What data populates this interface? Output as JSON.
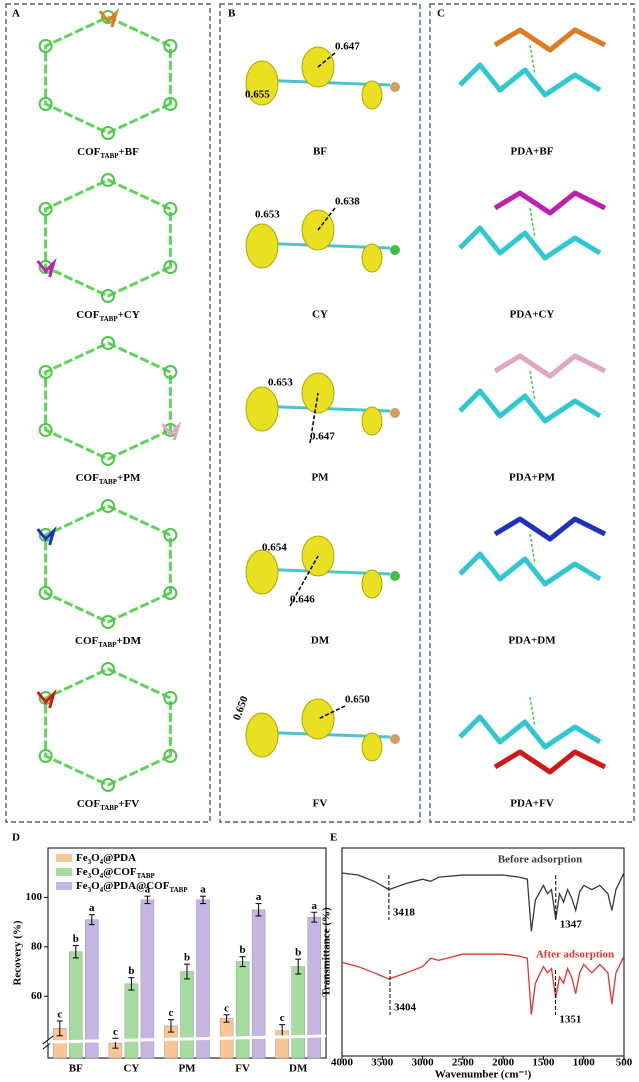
{
  "panels": {
    "A": {
      "label": "A",
      "items": [
        "COFTABP+BF",
        "COFTABP+CY",
        "COFTABP+PM",
        "COFTABP+DM",
        "COFTABP+FV"
      ]
    },
    "B": {
      "label": "B",
      "items": [
        {
          "name": "BF",
          "values": [
            "0.655",
            "0.647"
          ]
        },
        {
          "name": "CY",
          "values": [
            "0.653",
            "0.638"
          ]
        },
        {
          "name": "PM",
          "values": [
            "0.653",
            "0.647"
          ]
        },
        {
          "name": "DM",
          "values": [
            "0.654",
            "0.646"
          ]
        },
        {
          "name": "FV",
          "values": [
            "0.650",
            "0.650"
          ]
        }
      ]
    },
    "C": {
      "label": "C",
      "items": [
        "PDA+BF",
        "PDA+CY",
        "PDA+PM",
        "PDA+DM",
        "PDA+FV"
      ]
    }
  },
  "chart_data": [
    {
      "type": "bar",
      "panel": "D",
      "ylabel": "Recovery (%)",
      "categories": [
        "BF",
        "CY",
        "PM",
        "FV",
        "DM"
      ],
      "ylim": [
        35,
        120
      ],
      "yticks": [
        60,
        80,
        100
      ],
      "series": [
        {
          "name": "Fe3O4@PDA",
          "color": "#f8c696",
          "values": [
            47,
            41,
            48,
            51,
            46
          ],
          "errors": [
            3,
            2,
            2.5,
            1.5,
            2.5
          ],
          "letters": [
            "c",
            "c",
            "c",
            "c",
            "c"
          ]
        },
        {
          "name": "Fe3O4@COFTABP",
          "color": "#a6dca0",
          "values": [
            78,
            65,
            70,
            74,
            72
          ],
          "errors": [
            2.5,
            2.5,
            3,
            2,
            3
          ],
          "letters": [
            "b",
            "b",
            "b",
            "b",
            "b"
          ]
        },
        {
          "name": "Fe3O4@PDA@COFTABP",
          "color": "#c5b5e2",
          "values": [
            91,
            99,
            99,
            95,
            92
          ],
          "errors": [
            2,
            1.5,
            1.5,
            2.5,
            2
          ],
          "letters": [
            "a",
            "a",
            "a",
            "a",
            "a"
          ]
        }
      ]
    },
    {
      "type": "line",
      "panel": "E",
      "xlabel": "Wavenumber (cm⁻¹)",
      "ylabel": "Transmittance (%)",
      "x": [
        4000,
        3800,
        3600,
        3418,
        3200,
        3000,
        2900,
        2800,
        2500,
        2200,
        2000,
        1800,
        1700,
        1650,
        1600,
        1500,
        1450,
        1400,
        1347,
        1300,
        1250,
        1200,
        1150,
        1100,
        1050,
        1000,
        900,
        800,
        700,
        650,
        600,
        500
      ],
      "xlim": [
        4000,
        500
      ],
      "xticks": [
        4000,
        3500,
        3000,
        2500,
        2000,
        1500,
        1000,
        500
      ],
      "ylim": [
        0,
        100
      ],
      "series": [
        {
          "name": "Before adsorption",
          "color": "#3a3a3a",
          "peaks": [
            3418,
            1347
          ],
          "values": [
            88,
            87,
            84,
            80,
            83,
            85,
            84,
            86,
            87,
            87,
            87,
            86,
            85,
            60,
            75,
            82,
            78,
            80,
            66,
            78,
            74,
            80,
            76,
            70,
            79,
            82,
            80,
            82,
            78,
            70,
            80,
            88
          ]
        },
        {
          "name": "After adsorption",
          "color": "#e8322c",
          "peaks": [
            3404,
            1351
          ],
          "values": [
            45,
            43,
            40,
            37,
            40,
            43,
            47,
            46,
            49,
            49,
            49,
            48,
            47,
            20,
            35,
            43,
            40,
            42,
            28,
            38,
            35,
            42,
            38,
            30,
            40,
            44,
            40,
            44,
            40,
            25,
            40,
            48
          ]
        }
      ]
    }
  ]
}
